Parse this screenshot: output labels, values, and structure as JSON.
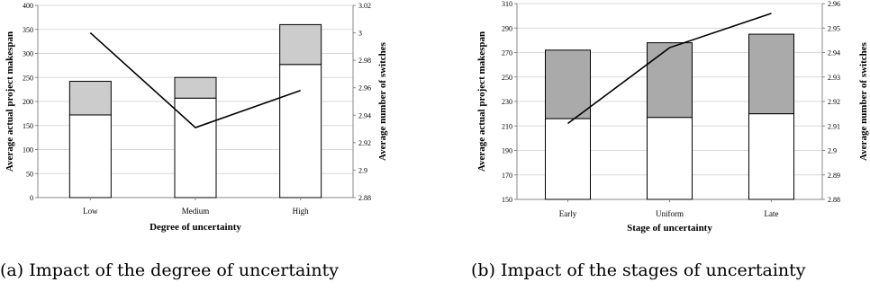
{
  "captions": {
    "a": "(a) Impact of the degree of uncertainty",
    "b": "(b) Impact of the stages of uncertainty"
  },
  "colors": {
    "bar_bottom": "#ffffff",
    "bar_top_a": "#cccccc",
    "bar_top_b": "#aaaaaa",
    "line": "#000000",
    "grid": "#d9d9d9"
  },
  "chart_data": [
    {
      "type": "bar",
      "stacked": true,
      "categories": [
        "Low",
        "Medium",
        "High"
      ],
      "xlabel": "Degree of uncertainty",
      "ylabel": "Average actual project makespan",
      "y2label": "Average number of switches",
      "ylim": [
        0,
        400
      ],
      "yticks": [
        0,
        50,
        100,
        150,
        200,
        250,
        300,
        350,
        400
      ],
      "y2lim": [
        2.88,
        3.02
      ],
      "y2ticks": [
        "2.88",
        "2.9",
        "2.92",
        "2.94",
        "2.96",
        "2.98",
        "3",
        "3.02"
      ],
      "grid": true,
      "series": [
        {
          "role": "bar-bottom",
          "values": [
            172,
            207,
            277
          ]
        },
        {
          "role": "bar-top",
          "values": [
            70,
            43,
            83
          ]
        },
        {
          "role": "line-right-axis",
          "values": [
            3.0,
            2.931,
            2.958
          ]
        }
      ]
    },
    {
      "type": "bar",
      "stacked": true,
      "categories": [
        "Early",
        "Uniform",
        "Late"
      ],
      "xlabel": "Stage of uncertainty",
      "ylabel": "Average actual project makespan",
      "y2label": "Average number of switches",
      "ylim": [
        150,
        310
      ],
      "yticks": [
        150,
        170,
        190,
        210,
        230,
        250,
        270,
        290,
        310
      ],
      "y2lim": [
        2.88,
        2.96
      ],
      "y2ticks": [
        "2.88",
        "2.89",
        "2.9",
        "2.91",
        "2.92",
        "2.93",
        "2.94",
        "2.95",
        "2.96"
      ],
      "grid": true,
      "series": [
        {
          "role": "bar-bottom",
          "values": [
            216,
            217,
            220
          ]
        },
        {
          "role": "bar-top",
          "values": [
            56,
            61,
            65
          ]
        },
        {
          "role": "line-right-axis",
          "values": [
            2.911,
            2.942,
            2.956
          ]
        }
      ]
    }
  ]
}
